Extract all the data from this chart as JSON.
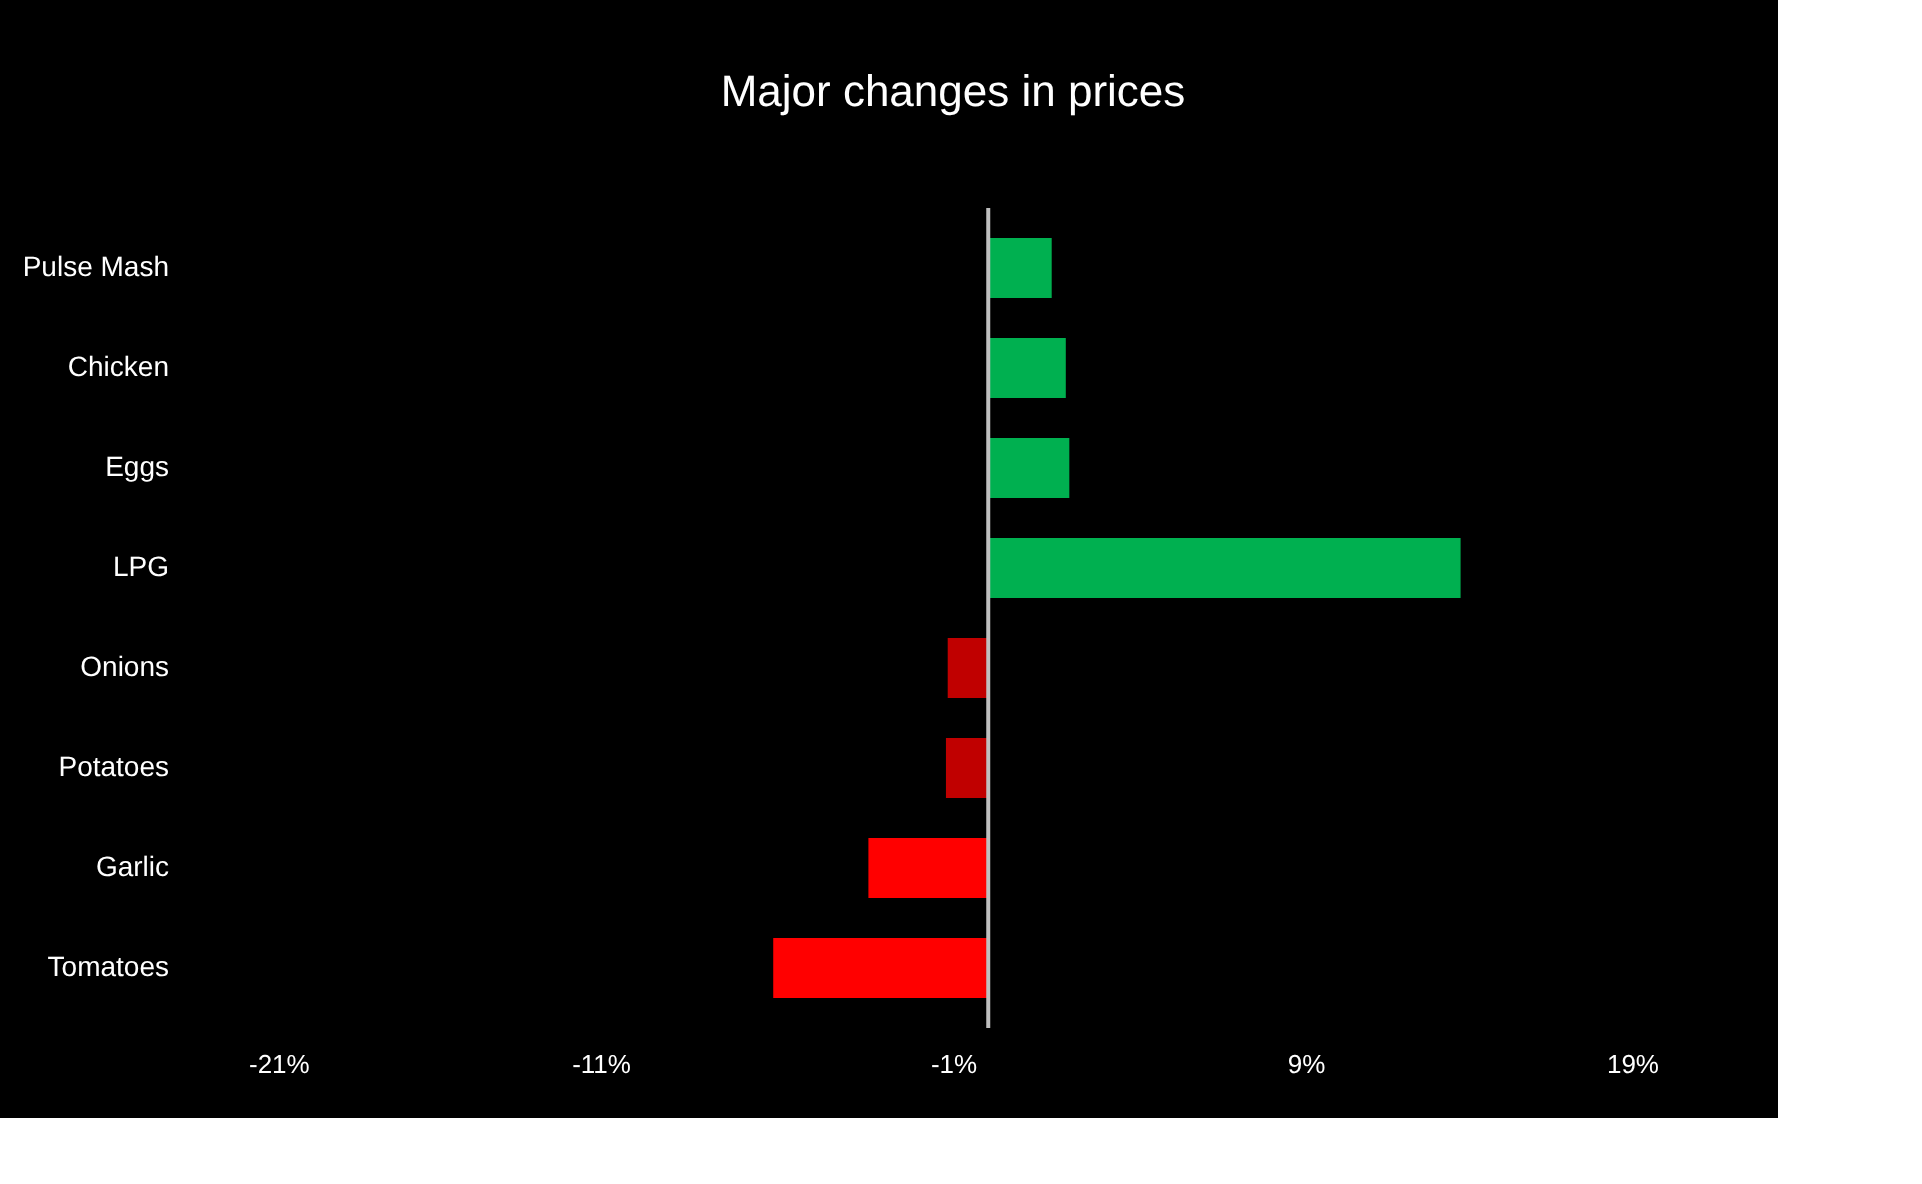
{
  "chart_data": {
    "type": "bar",
    "orientation": "horizontal",
    "title": "Major changes in prices",
    "categories": [
      "Pulse Mash",
      "Chicken",
      "Eggs",
      "LPG",
      "Onions",
      "Potatoes",
      "Garlic",
      "Tomatoes"
    ],
    "values": [
      1.8,
      2.2,
      2.3,
      13.4,
      -1.15,
      -1.2,
      -3.4,
      -6.1
    ],
    "colors": [
      "#00b050",
      "#00b050",
      "#00b050",
      "#00b050",
      "#c00000",
      "#c00000",
      "#ff0000",
      "#ff0000"
    ],
    "xlim": [
      -21,
      19
    ],
    "xticks": [
      {
        "value": -21,
        "label": "-21%"
      },
      {
        "value": -11,
        "label": "-11%"
      },
      {
        "value": -1,
        "label": "-1%"
      },
      {
        "value": 9,
        "label": "9%"
      },
      {
        "value": 19,
        "label": "19%"
      }
    ],
    "ref_lines": [
      {
        "axis": "x",
        "value": 0,
        "color": "#bfbfbf"
      }
    ],
    "grid": false
  }
}
